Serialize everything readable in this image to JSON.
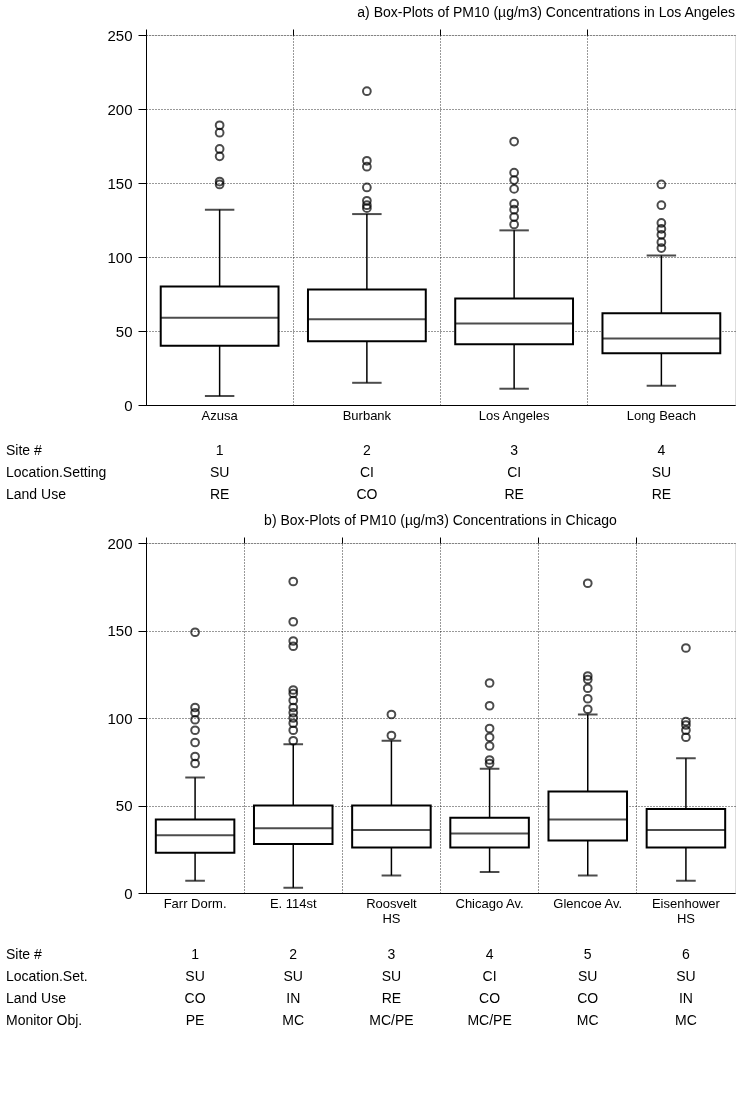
{
  "chart_data": [
    {
      "type": "box",
      "title": "a) Box-Plots of PM10 (µg/m3) Concentrations in Los Angeles",
      "categories": [
        "Azusa",
        "Burbank",
        "Los Angeles",
        "Long Beach"
      ],
      "ylim": [
        0,
        250
      ],
      "yticks": [
        0,
        50,
        100,
        150,
        200,
        250
      ],
      "grid": true,
      "boxes": [
        {
          "low": 6,
          "q1": 40,
          "median": 59,
          "q3": 80,
          "high": 132,
          "outliers": [
            189,
            184,
            173,
            168,
            151,
            149
          ]
        },
        {
          "low": 15,
          "q1": 43,
          "median": 58,
          "q3": 78,
          "high": 129,
          "outliers": [
            212,
            165,
            161,
            147,
            138,
            135,
            133
          ]
        },
        {
          "low": 11,
          "q1": 41,
          "median": 55,
          "q3": 72,
          "high": 118,
          "outliers": [
            178,
            157,
            152,
            146,
            136,
            132,
            127,
            122
          ]
        },
        {
          "low": 13,
          "q1": 35,
          "median": 45,
          "q3": 62,
          "high": 101,
          "outliers": [
            149,
            135,
            123,
            119,
            115,
            110,
            106
          ]
        }
      ],
      "annotations": [
        "Site #",
        "1",
        "2",
        "3",
        "4",
        "Location.Setting",
        "SU",
        "CI",
        "CI",
        "SU",
        "Land Use",
        "RE",
        "CO",
        "RE",
        "RE"
      ]
    },
    {
      "type": "box",
      "title": "b) Box-Plots of PM10 (µg/m3) Concentrations in Chicago",
      "categories": [
        "Farr Dorm.",
        "E. 114st",
        "Roosvelt\nHS",
        "Chicago Av.",
        "Glencoe Av.",
        "Eisenhower\nHS"
      ],
      "ylim": [
        0,
        200
      ],
      "yticks": [
        0,
        50,
        100,
        150,
        200
      ],
      "grid": true,
      "boxes": [
        {
          "low": 7,
          "q1": 23,
          "median": 33,
          "q3": 42,
          "high": 66,
          "outliers": [
            149,
            106,
            103,
            99,
            93,
            86,
            78,
            74
          ]
        },
        {
          "low": 3,
          "q1": 28,
          "median": 37,
          "q3": 50,
          "high": 85,
          "outliers": [
            178,
            155,
            144,
            141,
            116,
            114,
            110,
            106,
            103,
            100,
            97,
            93,
            87
          ]
        },
        {
          "low": 10,
          "q1": 26,
          "median": 36,
          "q3": 50,
          "high": 87,
          "outliers": [
            102,
            90
          ]
        },
        {
          "low": 12,
          "q1": 26,
          "median": 34,
          "q3": 43,
          "high": 71,
          "outliers": [
            120,
            107,
            94,
            89,
            84,
            76,
            74
          ]
        },
        {
          "low": 10,
          "q1": 30,
          "median": 42,
          "q3": 58,
          "high": 102,
          "outliers": [
            177,
            124,
            122,
            117,
            111,
            105
          ]
        },
        {
          "low": 7,
          "q1": 26,
          "median": 36,
          "q3": 48,
          "high": 77,
          "outliers": [
            140,
            98,
            96,
            93,
            89
          ]
        }
      ],
      "annotations": [
        "Site #",
        "1",
        "2",
        "3",
        "4",
        "5",
        "6",
        "Location.Set.",
        "SU",
        "SU",
        "SU",
        "CI",
        "SU",
        "SU",
        "Land Use",
        "CO",
        "IN",
        "RE",
        "CO",
        "CO",
        "IN",
        "Monitor Obj.",
        "PE",
        "MC",
        "MC/PE",
        "MC/PE",
        "MC",
        "MC"
      ]
    }
  ]
}
